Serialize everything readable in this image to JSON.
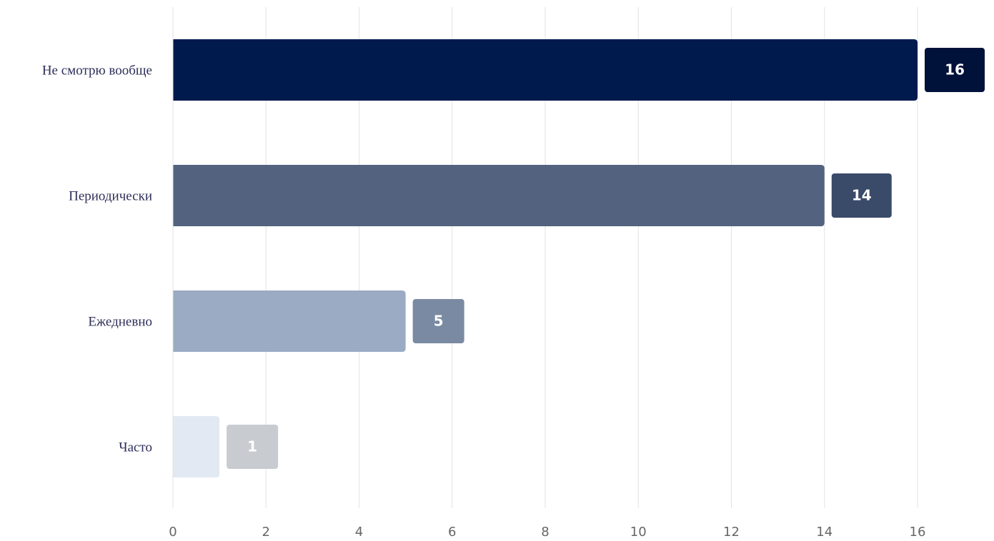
{
  "chart_data": {
    "type": "hbar",
    "categories": [
      "Не смотрю вообще",
      "Периодически",
      "Ежедневно",
      "Часто"
    ],
    "values": [
      16,
      14,
      5,
      1
    ],
    "colors": [
      "#001a4e",
      "#53627f",
      "#9aabc3",
      "#e2e9f2"
    ],
    "label_colors": [
      "#00113a",
      "#3a4a69",
      "#7a8aa3",
      "#c8ccd1"
    ],
    "xlim": [
      0,
      16
    ],
    "xticks": [
      0,
      2,
      4,
      6,
      8,
      10,
      12,
      14,
      16
    ],
    "grid": true
  }
}
